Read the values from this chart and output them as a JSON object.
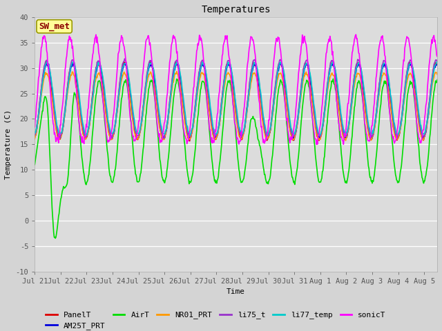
{
  "title": "Temperatures",
  "xlabel": "Time",
  "ylabel": "Temperature (C)",
  "ylim": [
    -10,
    40
  ],
  "fig_bg": "#d4d4d4",
  "plot_bg": "#dcdcdc",
  "annotation_text": "SW_met",
  "annotation_fg": "#8B0000",
  "annotation_bg": "#FFFF99",
  "annotation_border": "#999900",
  "series": {
    "PanelT": {
      "color": "#dd0000",
      "lw": 1.2
    },
    "AM25T_PRT": {
      "color": "#0000dd",
      "lw": 1.2
    },
    "AirT": {
      "color": "#00dd00",
      "lw": 1.2
    },
    "NR01_PRT": {
      "color": "#ff9900",
      "lw": 1.2
    },
    "li75_t": {
      "color": "#9933cc",
      "lw": 1.2
    },
    "li77_temp": {
      "color": "#00cccc",
      "lw": 1.2
    },
    "sonicT": {
      "color": "#ff00ff",
      "lw": 1.2
    }
  },
  "tick_labels": [
    "Jul 21",
    "Jul 22",
    "Jul 23",
    "Jul 24",
    "Jul 25",
    "Jul 26",
    "Jul 27",
    "Jul 28",
    "Jul 29",
    "Jul 30",
    "Jul 31",
    "Aug 1",
    "Aug 2",
    "Aug 3",
    "Aug 4",
    "Aug 5"
  ],
  "yticks": [
    -10,
    -5,
    0,
    5,
    10,
    15,
    20,
    25,
    30,
    35,
    40
  ],
  "font_family": "DejaVu Sans Mono",
  "title_fontsize": 10,
  "axis_label_fontsize": 8,
  "tick_fontsize": 7.5,
  "legend_fontsize": 8
}
